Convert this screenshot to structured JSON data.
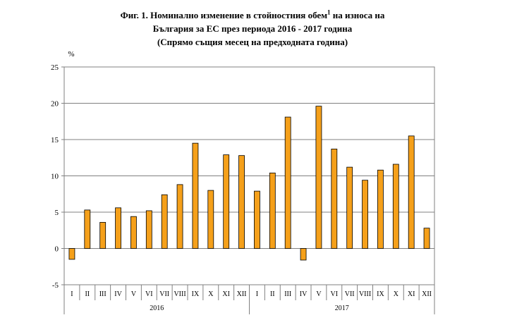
{
  "title": {
    "line1": "Фиг. 1. Номинално изменение в стойностния обем",
    "line1_sup": "1",
    "line1_tail": " на износа на",
    "line2": "България за ЕС през периода 2016 - 2017 година",
    "line3": "(Спрямо същия месец на предходната година)"
  },
  "chart_data": {
    "type": "bar",
    "ylabel": "%",
    "xlabel": "",
    "ylim": [
      -5,
      25
    ],
    "yticks": [
      25,
      20,
      15,
      10,
      5,
      0,
      -5
    ],
    "grid": true,
    "categories": [
      "I",
      "II",
      "III",
      "IV",
      "V",
      "VI",
      "VII",
      "VIII",
      "IX",
      "X",
      "XI",
      "XII",
      "I",
      "II",
      "III",
      "IV",
      "V",
      "VI",
      "VII",
      "VIII",
      "IX",
      "X",
      "XI",
      "XII"
    ],
    "groups": [
      {
        "label": "2016",
        "start": 0,
        "count": 12
      },
      {
        "label": "2017",
        "start": 12,
        "count": 12
      }
    ],
    "series": [
      {
        "values": [
          -1.5,
          5.3,
          3.6,
          5.6,
          4.4,
          5.2,
          7.4,
          8.8,
          14.5,
          8.0,
          12.9,
          12.8,
          7.9,
          10.4,
          18.1,
          -1.6,
          19.6,
          13.7,
          11.2,
          9.4,
          10.8,
          11.6,
          15.5,
          2.8
        ],
        "color": "#F5A01A"
      }
    ]
  }
}
